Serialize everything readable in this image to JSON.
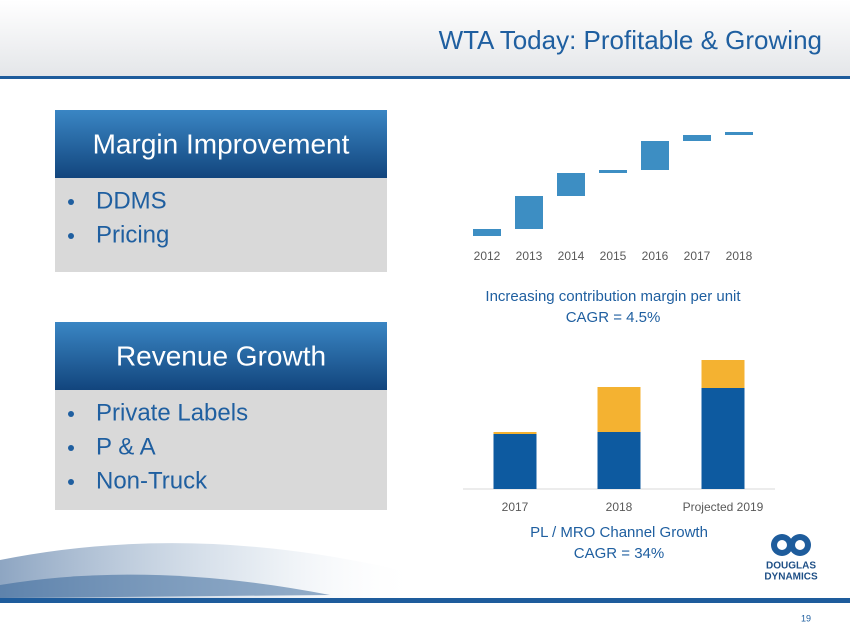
{
  "header": {
    "title": "WTA Today: Profitable & Growing"
  },
  "boxes": [
    {
      "title": "Margin Improvement",
      "items": [
        "DDMS",
        "Pricing"
      ]
    },
    {
      "title": "Revenue Growth",
      "items": [
        "Private Labels",
        "P & A",
        "Non-Truck"
      ]
    }
  ],
  "chart_data": [
    {
      "type": "waterfall",
      "categories": [
        "2012",
        "2013",
        "2014",
        "2015",
        "2016",
        "2017",
        "2018"
      ],
      "values": [
        7,
        33,
        23,
        3,
        29,
        6,
        3
      ],
      "color": "#3d8ec3",
      "ylim": [
        0,
        110
      ],
      "annotations": [
        "Increasing contribution margin per unit",
        "CAGR = 4.5%"
      ]
    },
    {
      "type": "stacked_bar",
      "categories": [
        "2017",
        "2018",
        "Projected 2019"
      ],
      "series": [
        {
          "color": "#0d5aa0",
          "values": [
            55,
            57,
            101
          ]
        },
        {
          "color": "#f4b231",
          "values": [
            2,
            45,
            28
          ]
        }
      ],
      "ylim": [
        0,
        140
      ],
      "annotations": [
        "PL / MRO Channel Growth",
        "CAGR = 34%"
      ]
    }
  ],
  "logo": {
    "lines": [
      "DOUGLAS",
      "DYNAMICS"
    ]
  },
  "page_number": "19"
}
